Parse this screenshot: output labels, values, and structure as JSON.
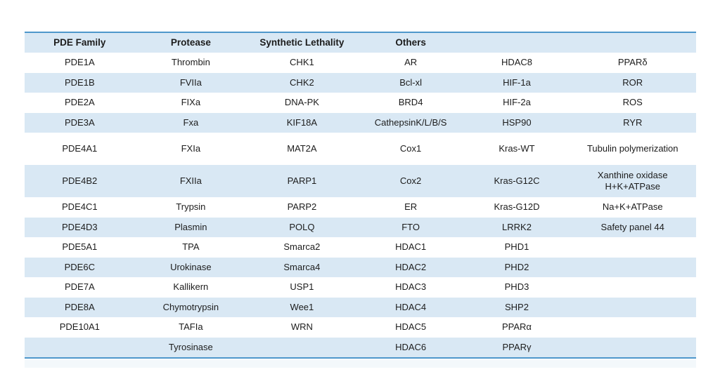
{
  "colors": {
    "row_blue": "#d9e8f4",
    "border_blue": "#4e97cb",
    "footer_strip": "#f3f8fb",
    "text": "#1c1c1c",
    "page_background": "#ffffff"
  },
  "chart_data": {
    "type": "table",
    "title": "",
    "headers": [
      "PDE Family",
      "Protease",
      "Synthetic Lethality",
      "Others",
      "",
      ""
    ],
    "rows": [
      [
        "PDE1A",
        "Thrombin",
        "CHK1",
        "AR",
        "HDAC8",
        "PPARδ"
      ],
      [
        "PDE1B",
        "FVIIa",
        "CHK2",
        "Bcl-xl",
        "HIF-1a",
        "ROR"
      ],
      [
        "PDE2A",
        "FIXa",
        "DNA-PK",
        "BRD4",
        "HIF-2a",
        "ROS"
      ],
      [
        "PDE3A",
        "Fxa",
        "KIF18A",
        "CathepsinK/L/B/S",
        "HSP90",
        "RYR"
      ],
      [
        "PDE4A1",
        "FXIa",
        "MAT2A",
        "Cox1",
        "Kras-WT",
        "Tubulin polymerization"
      ],
      [
        "PDE4B2",
        "FXIIa",
        "PARP1",
        "Cox2",
        "Kras-G12C",
        "Xanthine oxidase\nH+K+ATPase"
      ],
      [
        "PDE4C1",
        "Trypsin",
        "PARP2",
        "ER",
        "Kras-G12D",
        "Na+K+ATPase"
      ],
      [
        "PDE4D3",
        "Plasmin",
        "POLQ",
        "FTO",
        "LRRK2",
        "Safety panel 44"
      ],
      [
        "PDE5A1",
        "TPA",
        "Smarca2",
        "HDAC1",
        "PHD1",
        ""
      ],
      [
        "PDE6C",
        "Urokinase",
        "Smarca4",
        "HDAC2",
        "PHD2",
        ""
      ],
      [
        "PDE7A",
        "Kallikern",
        "USP1",
        "HDAC3",
        "PHD3",
        ""
      ],
      [
        "PDE8A",
        "Chymotrypsin",
        "Wee1",
        "HDAC4",
        "SHP2",
        ""
      ],
      [
        "PDE10A1",
        "TAFIa",
        "WRN",
        "HDAC5",
        "PPARα",
        ""
      ],
      [
        "",
        "Tyrosinase",
        "",
        "HDAC6",
        "PPARγ",
        ""
      ]
    ],
    "layout_hints": {
      "row_striping": "alternating white and light blue, header light blue",
      "borders": "medium blue rule above header and below last row",
      "alignment": "all cells centered"
    }
  }
}
